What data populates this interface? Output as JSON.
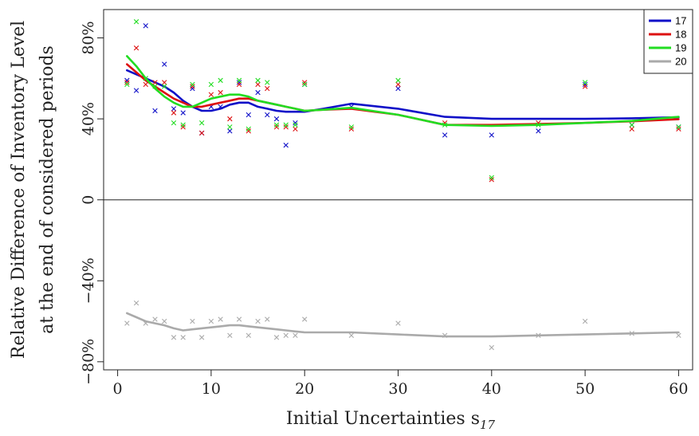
{
  "chart_data": {
    "type": "scatter",
    "xlabel": "Initial Uncertainties s",
    "xlabel_sub": "17",
    "ylabel_line1": "Relative Difference of Inventory Level",
    "ylabel_line2": "at the end of considered periods",
    "xlim": [
      -1.5,
      61.5
    ],
    "ylim": [
      -84,
      94
    ],
    "x_ticks": [
      {
        "value": 0,
        "label": "0"
      },
      {
        "value": 10,
        "label": "10"
      },
      {
        "value": 20,
        "label": "20"
      },
      {
        "value": 30,
        "label": "30"
      },
      {
        "value": 40,
        "label": "40"
      },
      {
        "value": 50,
        "label": "50"
      },
      {
        "value": 60,
        "label": "60"
      }
    ],
    "y_ticks": [
      {
        "value": 80,
        "label": "80%"
      },
      {
        "value": 40,
        "label": "40%"
      },
      {
        "value": 0,
        "label": "0"
      },
      {
        "value": -40,
        "label": "−40%"
      },
      {
        "value": -80,
        "label": "−80%"
      }
    ],
    "zero_line": 0,
    "grid": false,
    "legend_position": "top-right",
    "series": [
      {
        "name": "17",
        "color": "#1010c8",
        "points": [
          [
            1,
            59
          ],
          [
            2,
            54
          ],
          [
            3,
            86
          ],
          [
            4,
            44
          ],
          [
            5,
            67
          ],
          [
            6,
            45
          ],
          [
            7,
            43
          ],
          [
            8,
            55
          ],
          [
            9,
            33
          ],
          [
            10,
            46
          ],
          [
            11,
            46
          ],
          [
            12,
            34
          ],
          [
            13,
            58
          ],
          [
            14,
            42
          ],
          [
            15,
            53
          ],
          [
            16,
            42
          ],
          [
            17,
            40
          ],
          [
            18,
            27
          ],
          [
            19,
            38
          ],
          [
            20,
            57
          ],
          [
            25,
            46
          ],
          [
            30,
            55
          ],
          [
            35,
            32
          ],
          [
            40,
            32
          ],
          [
            45,
            34
          ],
          [
            50,
            57
          ],
          [
            55,
            37
          ],
          [
            60,
            36
          ]
        ],
        "curve": [
          [
            1,
            64
          ],
          [
            2,
            62
          ],
          [
            3,
            60
          ],
          [
            4,
            58
          ],
          [
            5,
            56
          ],
          [
            6,
            53
          ],
          [
            7,
            49
          ],
          [
            8,
            46
          ],
          [
            9,
            44
          ],
          [
            10,
            44
          ],
          [
            11,
            45
          ],
          [
            12,
            47
          ],
          [
            13,
            48
          ],
          [
            14,
            48
          ],
          [
            15,
            46
          ],
          [
            16,
            45
          ],
          [
            17,
            44
          ],
          [
            18,
            43.5
          ],
          [
            19,
            43.5
          ],
          [
            20,
            43.5
          ],
          [
            22,
            45
          ],
          [
            25,
            47.5
          ],
          [
            30,
            45
          ],
          [
            35,
            41
          ],
          [
            40,
            40
          ],
          [
            45,
            40
          ],
          [
            50,
            40
          ],
          [
            55,
            40.3
          ],
          [
            60,
            40.8
          ]
        ]
      },
      {
        "name": "18",
        "color": "#dd1111",
        "points": [
          [
            1,
            58
          ],
          [
            2,
            75
          ],
          [
            3,
            57
          ],
          [
            4,
            58
          ],
          [
            5,
            58
          ],
          [
            6,
            43
          ],
          [
            7,
            36
          ],
          [
            8,
            56
          ],
          [
            9,
            33
          ],
          [
            10,
            52
          ],
          [
            11,
            53
          ],
          [
            12,
            40
          ],
          [
            13,
            57
          ],
          [
            14,
            34
          ],
          [
            15,
            57
          ],
          [
            16,
            55
          ],
          [
            17,
            36
          ],
          [
            18,
            36
          ],
          [
            19,
            35
          ],
          [
            20,
            58
          ],
          [
            25,
            35
          ],
          [
            30,
            57
          ],
          [
            35,
            38
          ],
          [
            40,
            10
          ],
          [
            45,
            38
          ],
          [
            50,
            56
          ],
          [
            55,
            35
          ],
          [
            60,
            35
          ]
        ],
        "curve": [
          [
            1,
            67
          ],
          [
            2,
            63
          ],
          [
            3,
            59
          ],
          [
            4,
            56
          ],
          [
            5,
            53
          ],
          [
            6,
            50
          ],
          [
            7,
            48
          ],
          [
            8,
            46
          ],
          [
            9,
            46
          ],
          [
            10,
            47
          ],
          [
            11,
            48
          ],
          [
            12,
            49
          ],
          [
            13,
            50
          ],
          [
            14,
            50
          ],
          [
            15,
            49
          ],
          [
            16,
            48
          ],
          [
            17,
            47
          ],
          [
            18,
            46
          ],
          [
            19,
            45
          ],
          [
            20,
            44
          ],
          [
            22,
            44.5
          ],
          [
            25,
            45
          ],
          [
            30,
            42
          ],
          [
            35,
            37
          ],
          [
            40,
            37
          ],
          [
            45,
            37.5
          ],
          [
            50,
            38
          ],
          [
            55,
            38.8
          ],
          [
            60,
            39.8
          ]
        ]
      },
      {
        "name": "19",
        "color": "#22dd22",
        "points": [
          [
            1,
            57
          ],
          [
            2,
            88
          ],
          [
            3,
            60
          ],
          [
            4,
            56
          ],
          [
            5,
            56
          ],
          [
            6,
            38
          ],
          [
            7,
            37
          ],
          [
            8,
            57
          ],
          [
            9,
            38
          ],
          [
            10,
            57
          ],
          [
            11,
            59
          ],
          [
            12,
            36
          ],
          [
            13,
            59
          ],
          [
            14,
            35
          ],
          [
            15,
            59
          ],
          [
            16,
            58
          ],
          [
            17,
            37
          ],
          [
            18,
            37
          ],
          [
            19,
            37
          ],
          [
            20,
            57
          ],
          [
            25,
            36
          ],
          [
            30,
            59
          ],
          [
            35,
            37
          ],
          [
            40,
            11
          ],
          [
            45,
            37
          ],
          [
            50,
            58
          ],
          [
            55,
            37
          ],
          [
            60,
            36
          ]
        ],
        "curve": [
          [
            1,
            71
          ],
          [
            2,
            66
          ],
          [
            3,
            60
          ],
          [
            4,
            55
          ],
          [
            5,
            51
          ],
          [
            6,
            48
          ],
          [
            7,
            46
          ],
          [
            8,
            46
          ],
          [
            9,
            48
          ],
          [
            10,
            50
          ],
          [
            11,
            51
          ],
          [
            12,
            52
          ],
          [
            13,
            52
          ],
          [
            14,
            51
          ],
          [
            15,
            49
          ],
          [
            16,
            48
          ],
          [
            17,
            47
          ],
          [
            18,
            46
          ],
          [
            19,
            45
          ],
          [
            20,
            44
          ],
          [
            22,
            44.5
          ],
          [
            25,
            45.5
          ],
          [
            30,
            42
          ],
          [
            35,
            37
          ],
          [
            40,
            36.5
          ],
          [
            45,
            37
          ],
          [
            50,
            38
          ],
          [
            55,
            39
          ],
          [
            60,
            41
          ]
        ]
      },
      {
        "name": "20",
        "color": "#aaaaaa",
        "points": [
          [
            1,
            -61
          ],
          [
            2,
            -51
          ],
          [
            3,
            -61
          ],
          [
            4,
            -59
          ],
          [
            5,
            -60
          ],
          [
            6,
            -68
          ],
          [
            7,
            -68
          ],
          [
            8,
            -60
          ],
          [
            9,
            -68
          ],
          [
            10,
            -60
          ],
          [
            11,
            -59
          ],
          [
            12,
            -67
          ],
          [
            13,
            -59
          ],
          [
            14,
            -67
          ],
          [
            15,
            -60
          ],
          [
            16,
            -59
          ],
          [
            17,
            -68
          ],
          [
            18,
            -67
          ],
          [
            19,
            -67
          ],
          [
            20,
            -59
          ],
          [
            25,
            -67
          ],
          [
            30,
            -61
          ],
          [
            35,
            -67
          ],
          [
            40,
            -73
          ],
          [
            45,
            -67
          ],
          [
            50,
            -60
          ],
          [
            55,
            -66
          ],
          [
            60,
            -67
          ]
        ],
        "curve": [
          [
            1,
            -56
          ],
          [
            2,
            -58
          ],
          [
            3,
            -60
          ],
          [
            4,
            -61
          ],
          [
            5,
            -62
          ],
          [
            6,
            -63.5
          ],
          [
            7,
            -64.5
          ],
          [
            8,
            -64
          ],
          [
            9,
            -63.5
          ],
          [
            10,
            -63
          ],
          [
            11,
            -62.5
          ],
          [
            12,
            -62
          ],
          [
            13,
            -62
          ],
          [
            14,
            -62.5
          ],
          [
            15,
            -63
          ],
          [
            16,
            -63.5
          ],
          [
            17,
            -64
          ],
          [
            18,
            -64.5
          ],
          [
            19,
            -65
          ],
          [
            20,
            -65.5
          ],
          [
            25,
            -65.5
          ],
          [
            30,
            -66.5
          ],
          [
            35,
            -67.5
          ],
          [
            40,
            -67.5
          ],
          [
            45,
            -67
          ],
          [
            50,
            -66.5
          ],
          [
            55,
            -66
          ],
          [
            60,
            -65.5
          ]
        ]
      }
    ]
  }
}
